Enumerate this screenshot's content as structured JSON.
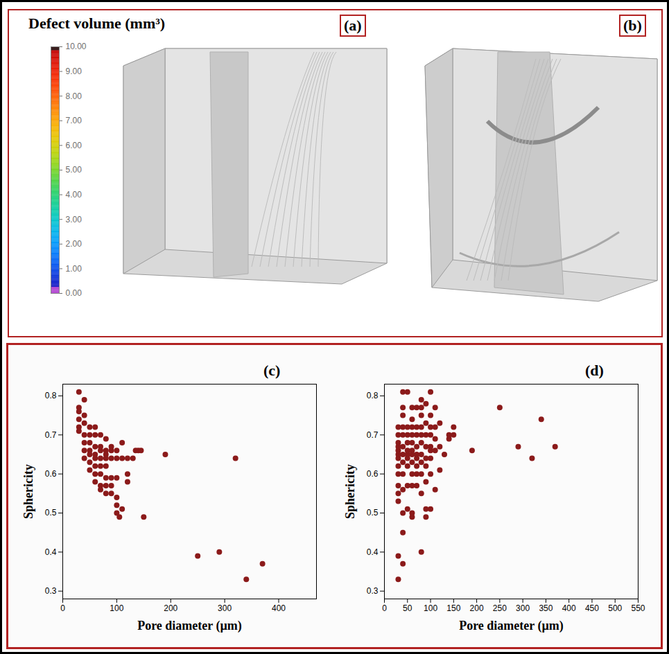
{
  "chart_data": [
    {
      "type": "colorbar",
      "title": "Defect volume (mm³)",
      "panel_labels": [
        "(a)",
        "(b)"
      ],
      "ylim": [
        0,
        10
      ],
      "yticks": [
        {
          "value": 0,
          "label": "0.00"
        },
        {
          "value": 1,
          "label": "1.00"
        },
        {
          "value": 2,
          "label": "2.00"
        },
        {
          "value": 3,
          "label": "3.00"
        },
        {
          "value": 4,
          "label": "4.00"
        },
        {
          "value": 5,
          "label": "5.00"
        },
        {
          "value": 6,
          "label": "6.00"
        },
        {
          "value": 7,
          "label": "7.00"
        },
        {
          "value": 8,
          "label": "8.00"
        },
        {
          "value": 9,
          "label": "9.00"
        },
        {
          "value": 10,
          "label": "10.00"
        }
      ]
    },
    {
      "type": "scatter",
      "title": "(c)",
      "x_label": "Pore diameter (µm)",
      "y_label": "Sphericity",
      "color": "#8b1a1a",
      "x": [
        30,
        30,
        30,
        30,
        30,
        30,
        40,
        40,
        40,
        40,
        40,
        40,
        40,
        50,
        50,
        50,
        50,
        50,
        50,
        50,
        60,
        60,
        60,
        60,
        60,
        60,
        60,
        60,
        70,
        70,
        70,
        70,
        70,
        70,
        70,
        70,
        80,
        80,
        80,
        80,
        80,
        80,
        80,
        80,
        90,
        90,
        90,
        90,
        90,
        90,
        100,
        100,
        100,
        100,
        100,
        100,
        105,
        110,
        110,
        110,
        120,
        120,
        120,
        130,
        135,
        140,
        145,
        150,
        190,
        250,
        290,
        320,
        340,
        370
      ],
      "values": [
        0.81,
        0.77,
        0.76,
        0.74,
        0.72,
        0.71,
        0.79,
        0.75,
        0.73,
        0.7,
        0.68,
        0.66,
        0.64,
        0.72,
        0.7,
        0.68,
        0.66,
        0.65,
        0.63,
        0.61,
        0.72,
        0.7,
        0.67,
        0.65,
        0.64,
        0.62,
        0.6,
        0.58,
        0.7,
        0.67,
        0.66,
        0.64,
        0.62,
        0.6,
        0.57,
        0.56,
        0.69,
        0.66,
        0.65,
        0.64,
        0.62,
        0.59,
        0.57,
        0.55,
        0.67,
        0.66,
        0.64,
        0.59,
        0.57,
        0.55,
        0.66,
        0.64,
        0.59,
        0.54,
        0.52,
        0.5,
        0.49,
        0.68,
        0.64,
        0.51,
        0.64,
        0.6,
        0.58,
        0.64,
        0.66,
        0.66,
        0.66,
        0.49,
        0.65,
        0.39,
        0.4,
        0.64,
        0.33,
        0.37
      ],
      "xlim": [
        0,
        470
      ],
      "ylim": [
        0.28,
        0.83
      ],
      "xticks": [
        0,
        100,
        200,
        300,
        400
      ],
      "yticks": [
        0.3,
        0.4,
        0.5,
        0.6,
        0.7,
        0.8
      ]
    },
    {
      "type": "scatter",
      "title": "(d)",
      "x_label": "Pore diameter (µm)",
      "y_label": "Sphericity",
      "color": "#8b1a1a",
      "x": [
        30,
        30,
        30,
        30,
        30,
        30,
        30,
        30,
        30,
        30,
        30,
        30,
        30,
        30,
        40,
        40,
        40,
        40,
        40,
        40,
        40,
        40,
        40,
        40,
        40,
        40,
        40,
        50,
        50,
        50,
        50,
        50,
        50,
        50,
        50,
        50,
        50,
        60,
        60,
        60,
        60,
        60,
        60,
        60,
        60,
        60,
        60,
        60,
        60,
        70,
        70,
        70,
        70,
        70,
        70,
        70,
        70,
        70,
        80,
        80,
        80,
        80,
        80,
        80,
        80,
        80,
        80,
        80,
        80,
        90,
        90,
        90,
        90,
        90,
        90,
        90,
        90,
        90,
        100,
        100,
        100,
        100,
        100,
        100,
        100,
        100,
        100,
        110,
        110,
        110,
        110,
        110,
        120,
        120,
        120,
        130,
        140,
        140,
        150,
        150,
        190,
        250,
        290,
        320,
        340,
        370
      ],
      "values": [
        0.39,
        0.33,
        0.53,
        0.55,
        0.57,
        0.6,
        0.62,
        0.64,
        0.65,
        0.66,
        0.67,
        0.68,
        0.7,
        0.72,
        0.37,
        0.45,
        0.5,
        0.56,
        0.6,
        0.63,
        0.65,
        0.67,
        0.7,
        0.72,
        0.75,
        0.77,
        0.81,
        0.51,
        0.57,
        0.62,
        0.64,
        0.65,
        0.66,
        0.68,
        0.7,
        0.72,
        0.81,
        0.49,
        0.5,
        0.57,
        0.6,
        0.63,
        0.65,
        0.66,
        0.68,
        0.7,
        0.72,
        0.74,
        0.77,
        0.57,
        0.6,
        0.62,
        0.64,
        0.65,
        0.67,
        0.7,
        0.72,
        0.77,
        0.4,
        0.55,
        0.6,
        0.63,
        0.65,
        0.68,
        0.7,
        0.72,
        0.75,
        0.77,
        0.79,
        0.49,
        0.51,
        0.58,
        0.62,
        0.64,
        0.67,
        0.7,
        0.73,
        0.78,
        0.51,
        0.6,
        0.64,
        0.66,
        0.67,
        0.7,
        0.72,
        0.75,
        0.81,
        0.56,
        0.66,
        0.69,
        0.72,
        0.77,
        0.61,
        0.67,
        0.73,
        0.65,
        0.69,
        0.7,
        0.7,
        0.72,
        0.66,
        0.77,
        0.67,
        0.64,
        0.74,
        0.67
      ],
      "xlim": [
        0,
        550
      ],
      "ylim": [
        0.28,
        0.83
      ],
      "xticks": [
        0,
        50,
        100,
        150,
        200,
        250,
        300,
        350,
        400,
        450,
        500,
        550
      ],
      "yticks": [
        0.3,
        0.4,
        0.5,
        0.6,
        0.7,
        0.8
      ]
    }
  ]
}
